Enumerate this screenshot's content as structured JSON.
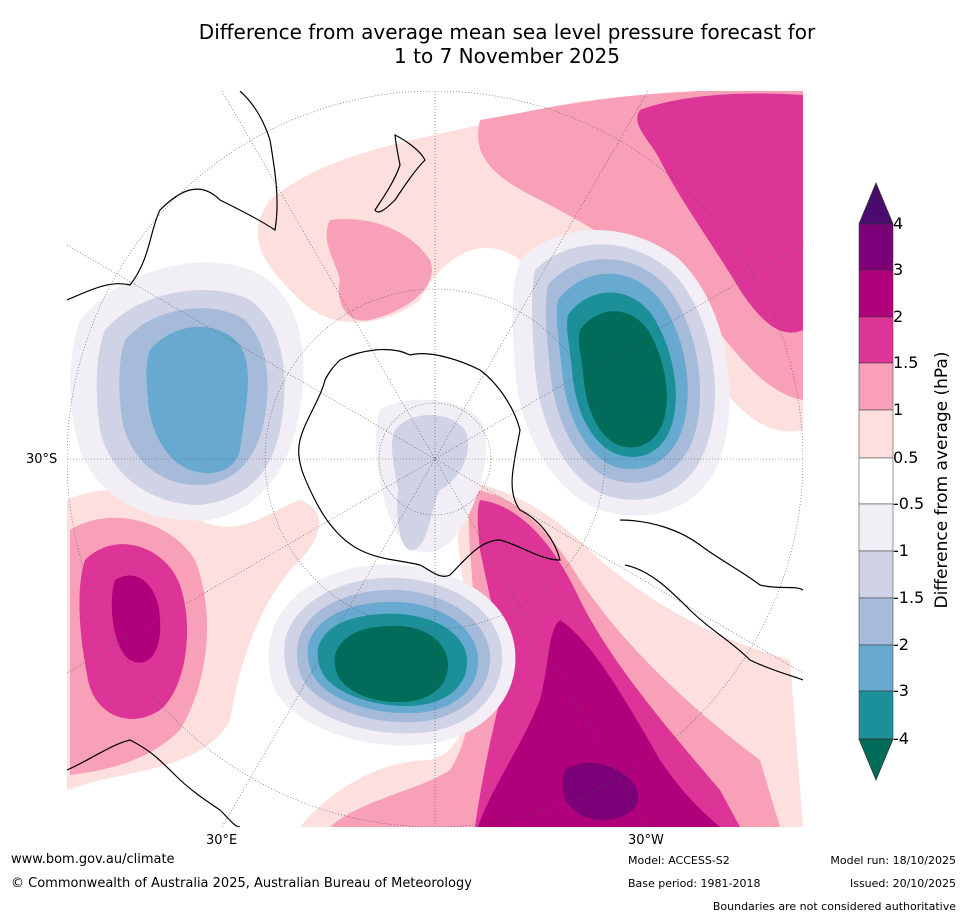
{
  "title_line1": "Difference from average mean sea level pressure forecast for",
  "title_line2": "1 to 7 November 2025",
  "axis_labels": {
    "lat_30s": "30°S",
    "lon_30e": "30°E",
    "lon_30w": "30°W"
  },
  "colorbar": {
    "title": "Difference from average (hPa)",
    "ticks": [
      "4",
      "3",
      "2",
      "1.5",
      "1",
      "0.5",
      "-0.5",
      "-1",
      "-1.5",
      "-2",
      "-3",
      "-4"
    ],
    "colors": {
      "above_4": "#4b0a6e",
      "3_to_4": "#7b0077",
      "2_to_3": "#b1007c",
      "1.5_to_2": "#dc3597",
      "1_to_1.5": "#f8a0b8",
      "0.5_to_1": "#fde0de",
      "neutral": "#ffffff",
      "m1_to_m0.5": "#f1eef5",
      "m1.5_to_m1": "#d0d2e6",
      "m2_to_m1.5": "#a6bad9",
      "m3_to_m2": "#67a9cf",
      "m4_to_m3": "#1c9099",
      "below_m4": "#016c59"
    }
  },
  "footer": {
    "url": "www.bom.gov.au/climate",
    "copyright": "© Commonwealth of Australia 2025, Australian Bureau of Meteorology",
    "model": "Model: ACCESS-S2",
    "base_period": "Base period: 1981-2018",
    "model_run": "Model run: 18/10/2025",
    "issued": "Issued: 20/10/2025",
    "disclaimer": "Boundaries are not considered authoritative"
  }
}
